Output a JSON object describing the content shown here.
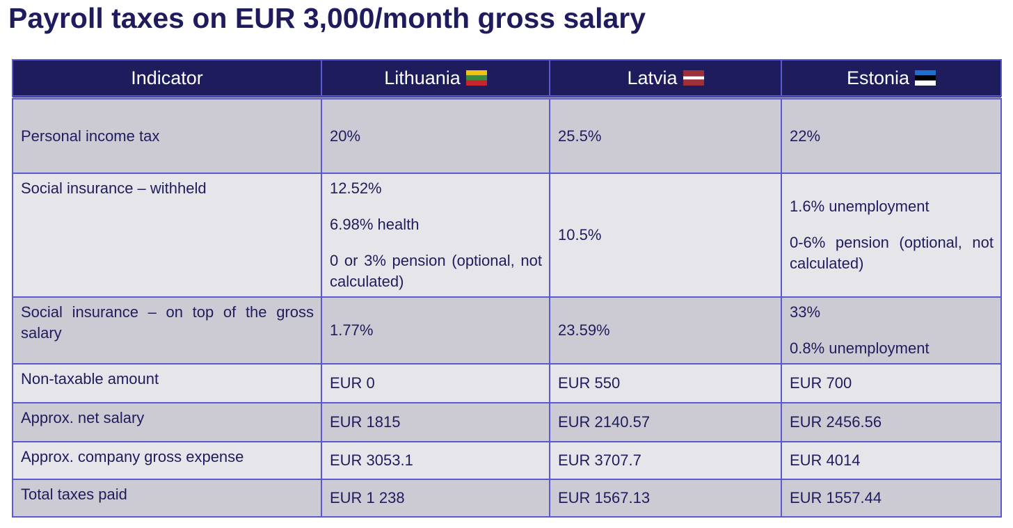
{
  "title": "Payroll taxes on EUR 3,000/month gross salary",
  "table": {
    "header": [
      "Indicator",
      "Lithuania",
      "Latvia",
      "Estonia"
    ],
    "rows": [
      [
        "Personal income tax",
        "20%",
        "25.5%",
        "22%"
      ],
      [
        "Social insurance – withheld",
        [
          "12.52%",
          "6.98% health",
          "0 or 3% pension (optional, not calculated)"
        ],
        "10.5%",
        [
          "1.6% unemployment",
          "0-6% pension (optional, not calculated)"
        ]
      ],
      [
        "Social insurance – on top of the gross salary",
        "1.77%",
        "23.59%",
        [
          "33%",
          "0.8% unemployment"
        ]
      ],
      [
        "Non-taxable amount",
        "EUR 0",
        "EUR 550",
        "EUR 700"
      ],
      [
        "Approx. net salary",
        "EUR 1815",
        "EUR 2140.57",
        "EUR 2456.56"
      ],
      [
        "Approx. company gross expense",
        "EUR 3053.1",
        "EUR 3707.7",
        "EUR 4014"
      ],
      [
        "Total taxes paid",
        "EUR 1 238",
        "EUR 1567.13",
        "EUR 1557.44"
      ]
    ]
  }
}
